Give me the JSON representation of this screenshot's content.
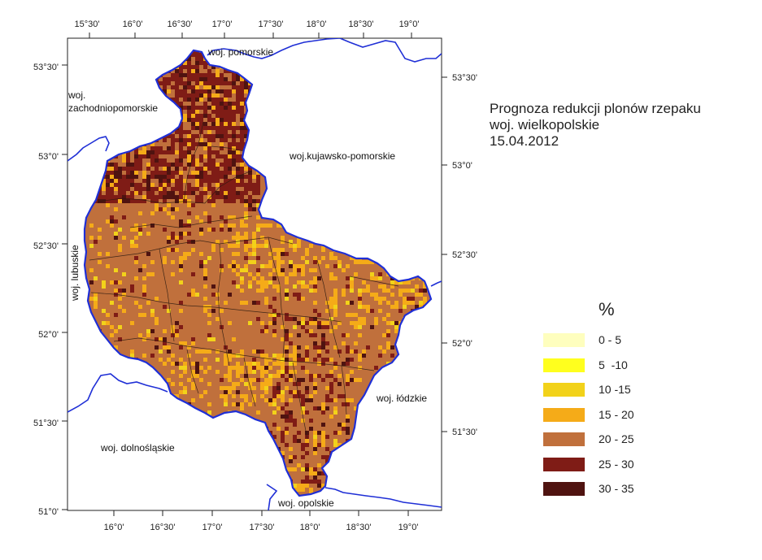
{
  "title": {
    "line1": "Prognoza redukcji plonów rzepaku",
    "line2": "woj. wielkopolskie",
    "line3": "15.04.2012"
  },
  "top_axis_labels": [
    "15°30'",
    "16°0'",
    "16°30'",
    "17°0'",
    "17°30'",
    "18°0'",
    "18°30'",
    "19°0'"
  ],
  "bottom_axis_labels": [
    "16°0'",
    "16°30'",
    "17°0'",
    "17°30'",
    "18°0'",
    "18°30'",
    "19°0'"
  ],
  "left_axis_labels": [
    "53°30'",
    "53°0'",
    "52°30'",
    "52°0'",
    "51°30'",
    "51°0'"
  ],
  "right_axis_labels": [
    "53°30'",
    "53°0'",
    "52°30'",
    "52°0'",
    "51°30'"
  ],
  "regions": {
    "pomorskie": "woj. pomorskie",
    "zachodniopomorskie_1": "woj.",
    "zachodniopomorskie_2": "zachodniopomorskie",
    "kujawsko_pomorskie": "woj.kujawsko-pomorskie",
    "lubuskie": "woj. lubuskie",
    "lodzkie": "woj. łódzkie",
    "dolnoslaskie": "woj. dolnośląskie",
    "opolskie": "woj. opolskie"
  },
  "legend": {
    "title": "%",
    "items": [
      {
        "label": "0 - 5",
        "color": "#fefebe"
      },
      {
        "label": "5  -10",
        "color": "#ffff1e"
      },
      {
        "label": "10 -15",
        "color": "#f2d21a"
      },
      {
        "label": "15 - 20",
        "color": "#f5ab18"
      },
      {
        "label": "20 - 25",
        "color": "#c0703c"
      },
      {
        "label": "25 - 30",
        "color": "#7f1c16"
      },
      {
        "label": "30 - 35",
        "color": "#4f1310"
      }
    ]
  }
}
